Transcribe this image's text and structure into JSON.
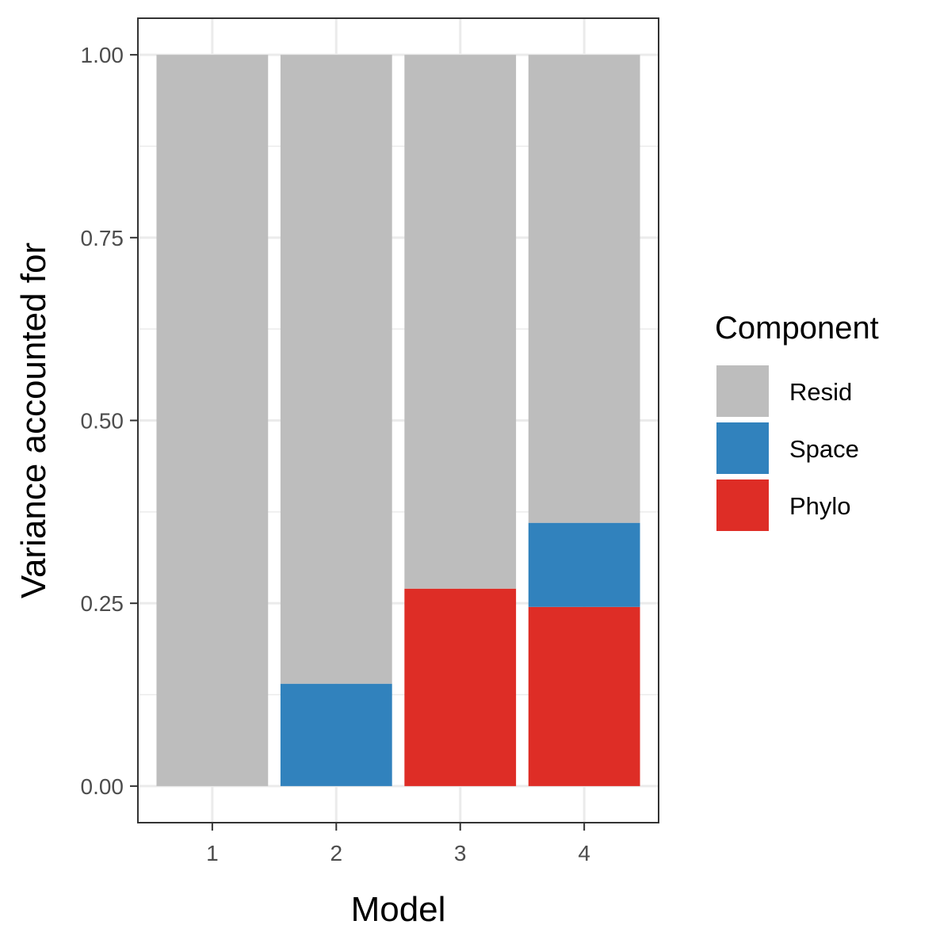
{
  "chart_data": {
    "type": "bar",
    "stacked": true,
    "categories": [
      "1",
      "2",
      "3",
      "4"
    ],
    "series": [
      {
        "name": "Phylo",
        "color": "#de2d26",
        "values": [
          0,
          0,
          0.27,
          0.245
        ]
      },
      {
        "name": "Space",
        "color": "#3182bd",
        "values": [
          0,
          0.14,
          0,
          0.115
        ]
      },
      {
        "name": "Resid",
        "color": "#bdbdbd",
        "values": [
          1.0,
          0.86,
          0.73,
          0.64
        ]
      }
    ],
    "xlabel": "Model",
    "ylabel": "Variance accounted for",
    "ylim": [
      -0.05,
      1.05
    ],
    "yticks": [
      0.0,
      0.25,
      0.5,
      0.75,
      1.0
    ],
    "ytick_labels": [
      "0.00",
      "0.25",
      "0.50",
      "0.75",
      "1.00"
    ],
    "grid": true,
    "legend": {
      "title": "Component",
      "position": "right",
      "order": [
        "Resid",
        "Space",
        "Phylo"
      ]
    }
  }
}
